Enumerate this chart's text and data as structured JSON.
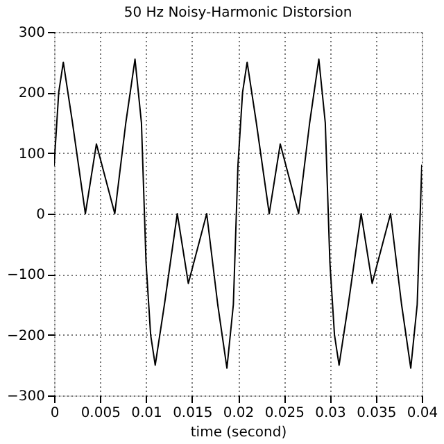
{
  "chart_data": {
    "type": "line",
    "title": "50 Hz Noisy-Harmonic Distorsion",
    "xlabel": "time (second)",
    "x": [
      0,
      0.0005,
      0.001,
      0.002,
      0.0034,
      0.0046,
      0.0066,
      0.0078,
      0.0088,
      0.0095,
      0.01,
      0.0105,
      0.011,
      0.012,
      0.0134,
      0.0146,
      0.0166,
      0.0178,
      0.0188,
      0.0195,
      0.02,
      0.0205,
      0.021,
      0.022,
      0.0234,
      0.0246,
      0.0266,
      0.0278,
      0.0288,
      0.0295,
      0.03,
      0.0305,
      0.031,
      0.032,
      0.0334,
      0.0346,
      0.0366,
      0.0378,
      0.0388,
      0.0395,
      0.04
    ],
    "series": [
      {
        "color": "#000000",
        "values": [
          80,
          200,
          250,
          150,
          0,
          115,
          0,
          150,
          255,
          150,
          -80,
          -200,
          -250,
          -150,
          0,
          -115,
          0,
          -150,
          -255,
          -150,
          80,
          200,
          250,
          150,
          0,
          115,
          0,
          150,
          255,
          150,
          -80,
          -200,
          -250,
          -150,
          0,
          -115,
          0,
          -150,
          -255,
          -150,
          80
        ]
      }
    ],
    "xlim": [
      0,
      0.04
    ],
    "xticks": [
      0,
      0.005,
      0.01,
      0.015,
      0.02,
      0.025,
      0.03,
      0.035,
      0.04
    ],
    "ylim": [
      -300,
      300
    ],
    "yticks": [
      -300,
      -200,
      -100,
      0,
      100,
      200,
      300
    ],
    "grid": true,
    "line_style": "solid",
    "marker": "none"
  }
}
